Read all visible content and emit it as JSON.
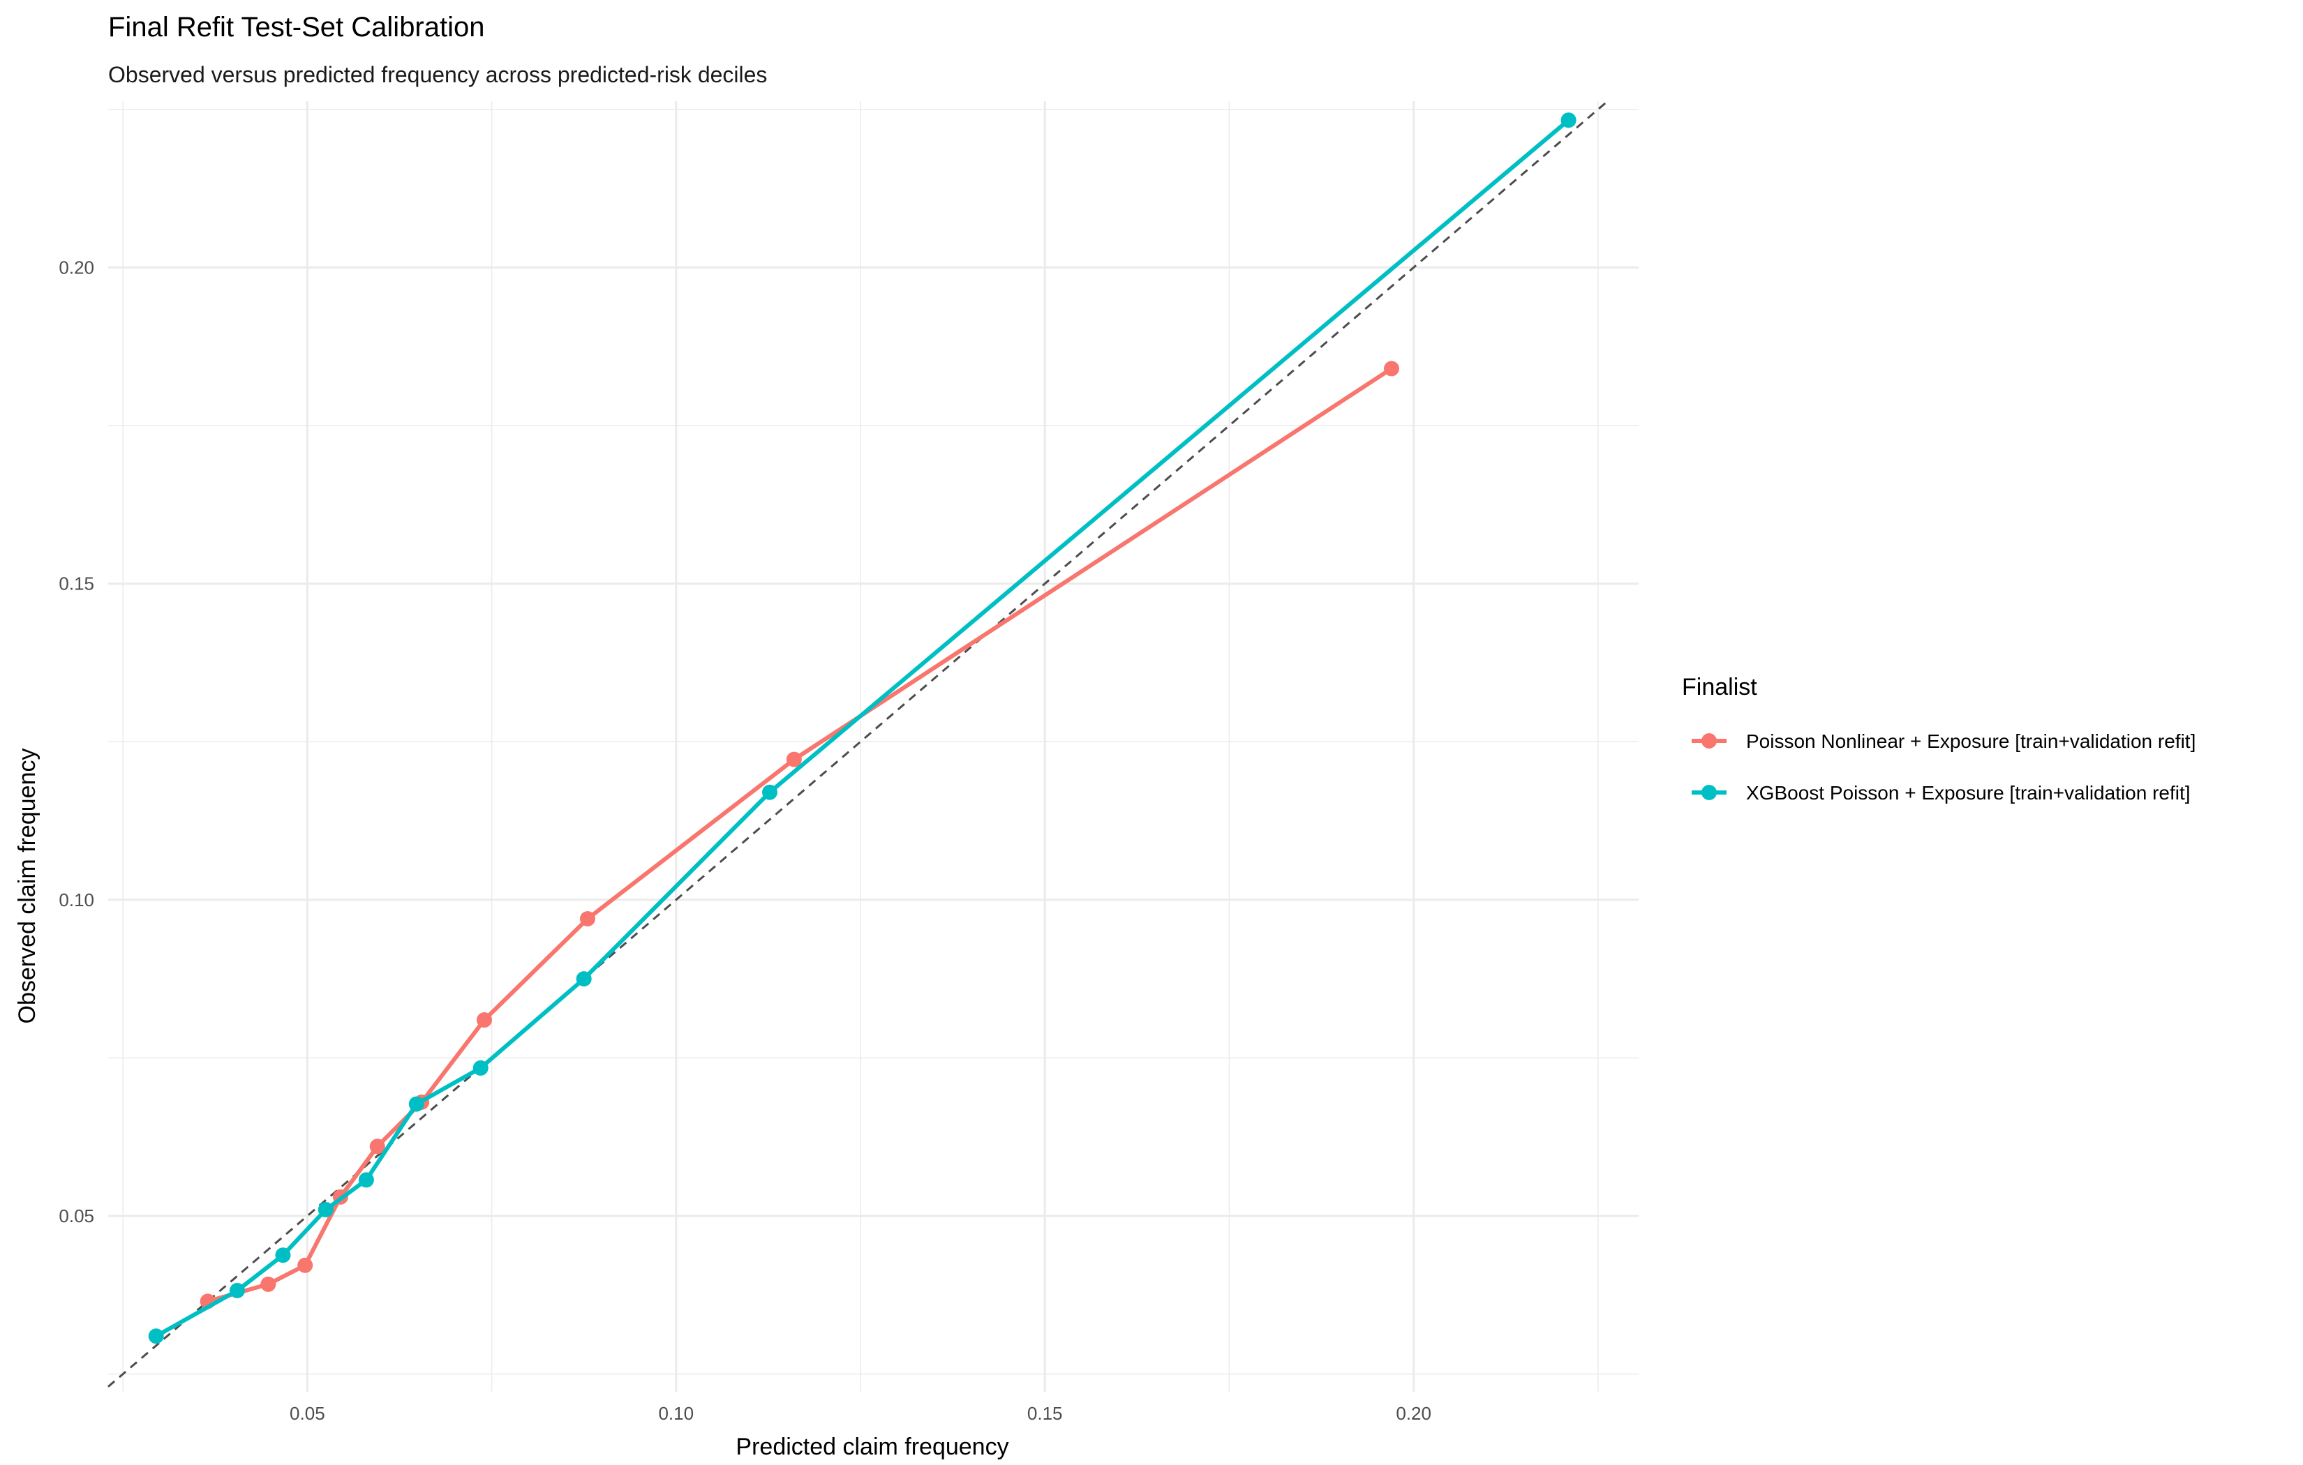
{
  "chart_data": {
    "type": "line",
    "title": "Final Refit Test-Set Calibration",
    "subtitle": "Observed versus predicted frequency across predicted-risk deciles",
    "xlabel": "Predicted claim frequency",
    "ylabel": "Observed claim frequency",
    "xlim": [
      0.023,
      0.2305
    ],
    "ylim": [
      0.0222,
      0.2263
    ],
    "x_ticks": [
      0.05,
      0.1,
      0.15,
      0.2
    ],
    "x_tick_labels": [
      "0.05",
      "0.10",
      "0.15",
      "0.20"
    ],
    "y_ticks": [
      0.05,
      0.1,
      0.15,
      0.2
    ],
    "y_tick_labels": [
      "0.05",
      "0.10",
      "0.15",
      "0.20"
    ],
    "grid": true,
    "reference_line": "y = x",
    "legend": {
      "title": "Finalist",
      "placement": "right"
    },
    "series": [
      {
        "name": "Poisson Nonlinear + Exposure [train+validation refit]",
        "color": "#F8766D",
        "points": [
          {
            "x": 0.0365,
            "y": 0.0365
          },
          {
            "x": 0.0447,
            "y": 0.0392
          },
          {
            "x": 0.0497,
            "y": 0.0422
          },
          {
            "x": 0.0545,
            "y": 0.053
          },
          {
            "x": 0.0595,
            "y": 0.061
          },
          {
            "x": 0.0655,
            "y": 0.068
          },
          {
            "x": 0.074,
            "y": 0.081
          },
          {
            "x": 0.088,
            "y": 0.097
          },
          {
            "x": 0.116,
            "y": 0.1222
          },
          {
            "x": 0.197,
            "y": 0.184
          }
        ]
      },
      {
        "name": "XGBoost Poisson + Exposure [train+validation refit]",
        "color": "#00BFC4",
        "points": [
          {
            "x": 0.0295,
            "y": 0.031
          },
          {
            "x": 0.0405,
            "y": 0.0382
          },
          {
            "x": 0.0467,
            "y": 0.0438
          },
          {
            "x": 0.0525,
            "y": 0.051
          },
          {
            "x": 0.058,
            "y": 0.0557
          },
          {
            "x": 0.0648,
            "y": 0.0677
          },
          {
            "x": 0.0735,
            "y": 0.0734
          },
          {
            "x": 0.0875,
            "y": 0.0875
          },
          {
            "x": 0.1127,
            "y": 0.117
          },
          {
            "x": 0.221,
            "y": 0.2233
          }
        ]
      }
    ]
  }
}
